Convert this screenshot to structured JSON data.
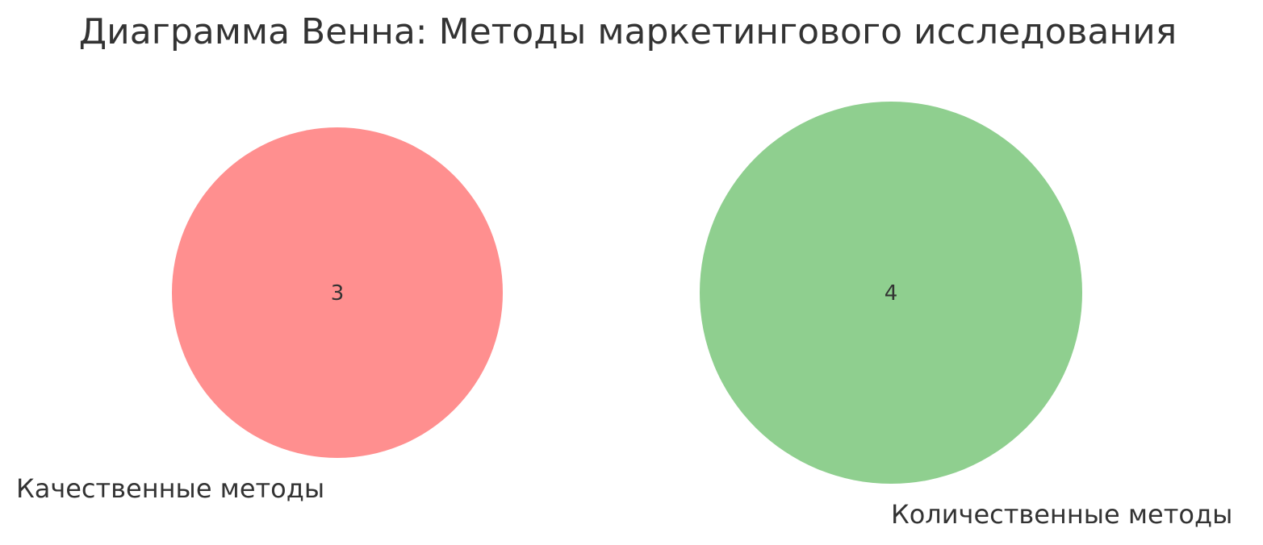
{
  "title": "Диаграмма Венна: Методы маркетингового исследования",
  "sets": [
    {
      "label": "Качественные методы",
      "count": "3",
      "color": "#ff8f8f"
    },
    {
      "label": "Количественные методы",
      "count": "4",
      "color": "#8fcf8f"
    }
  ],
  "text_color": "#333333"
}
